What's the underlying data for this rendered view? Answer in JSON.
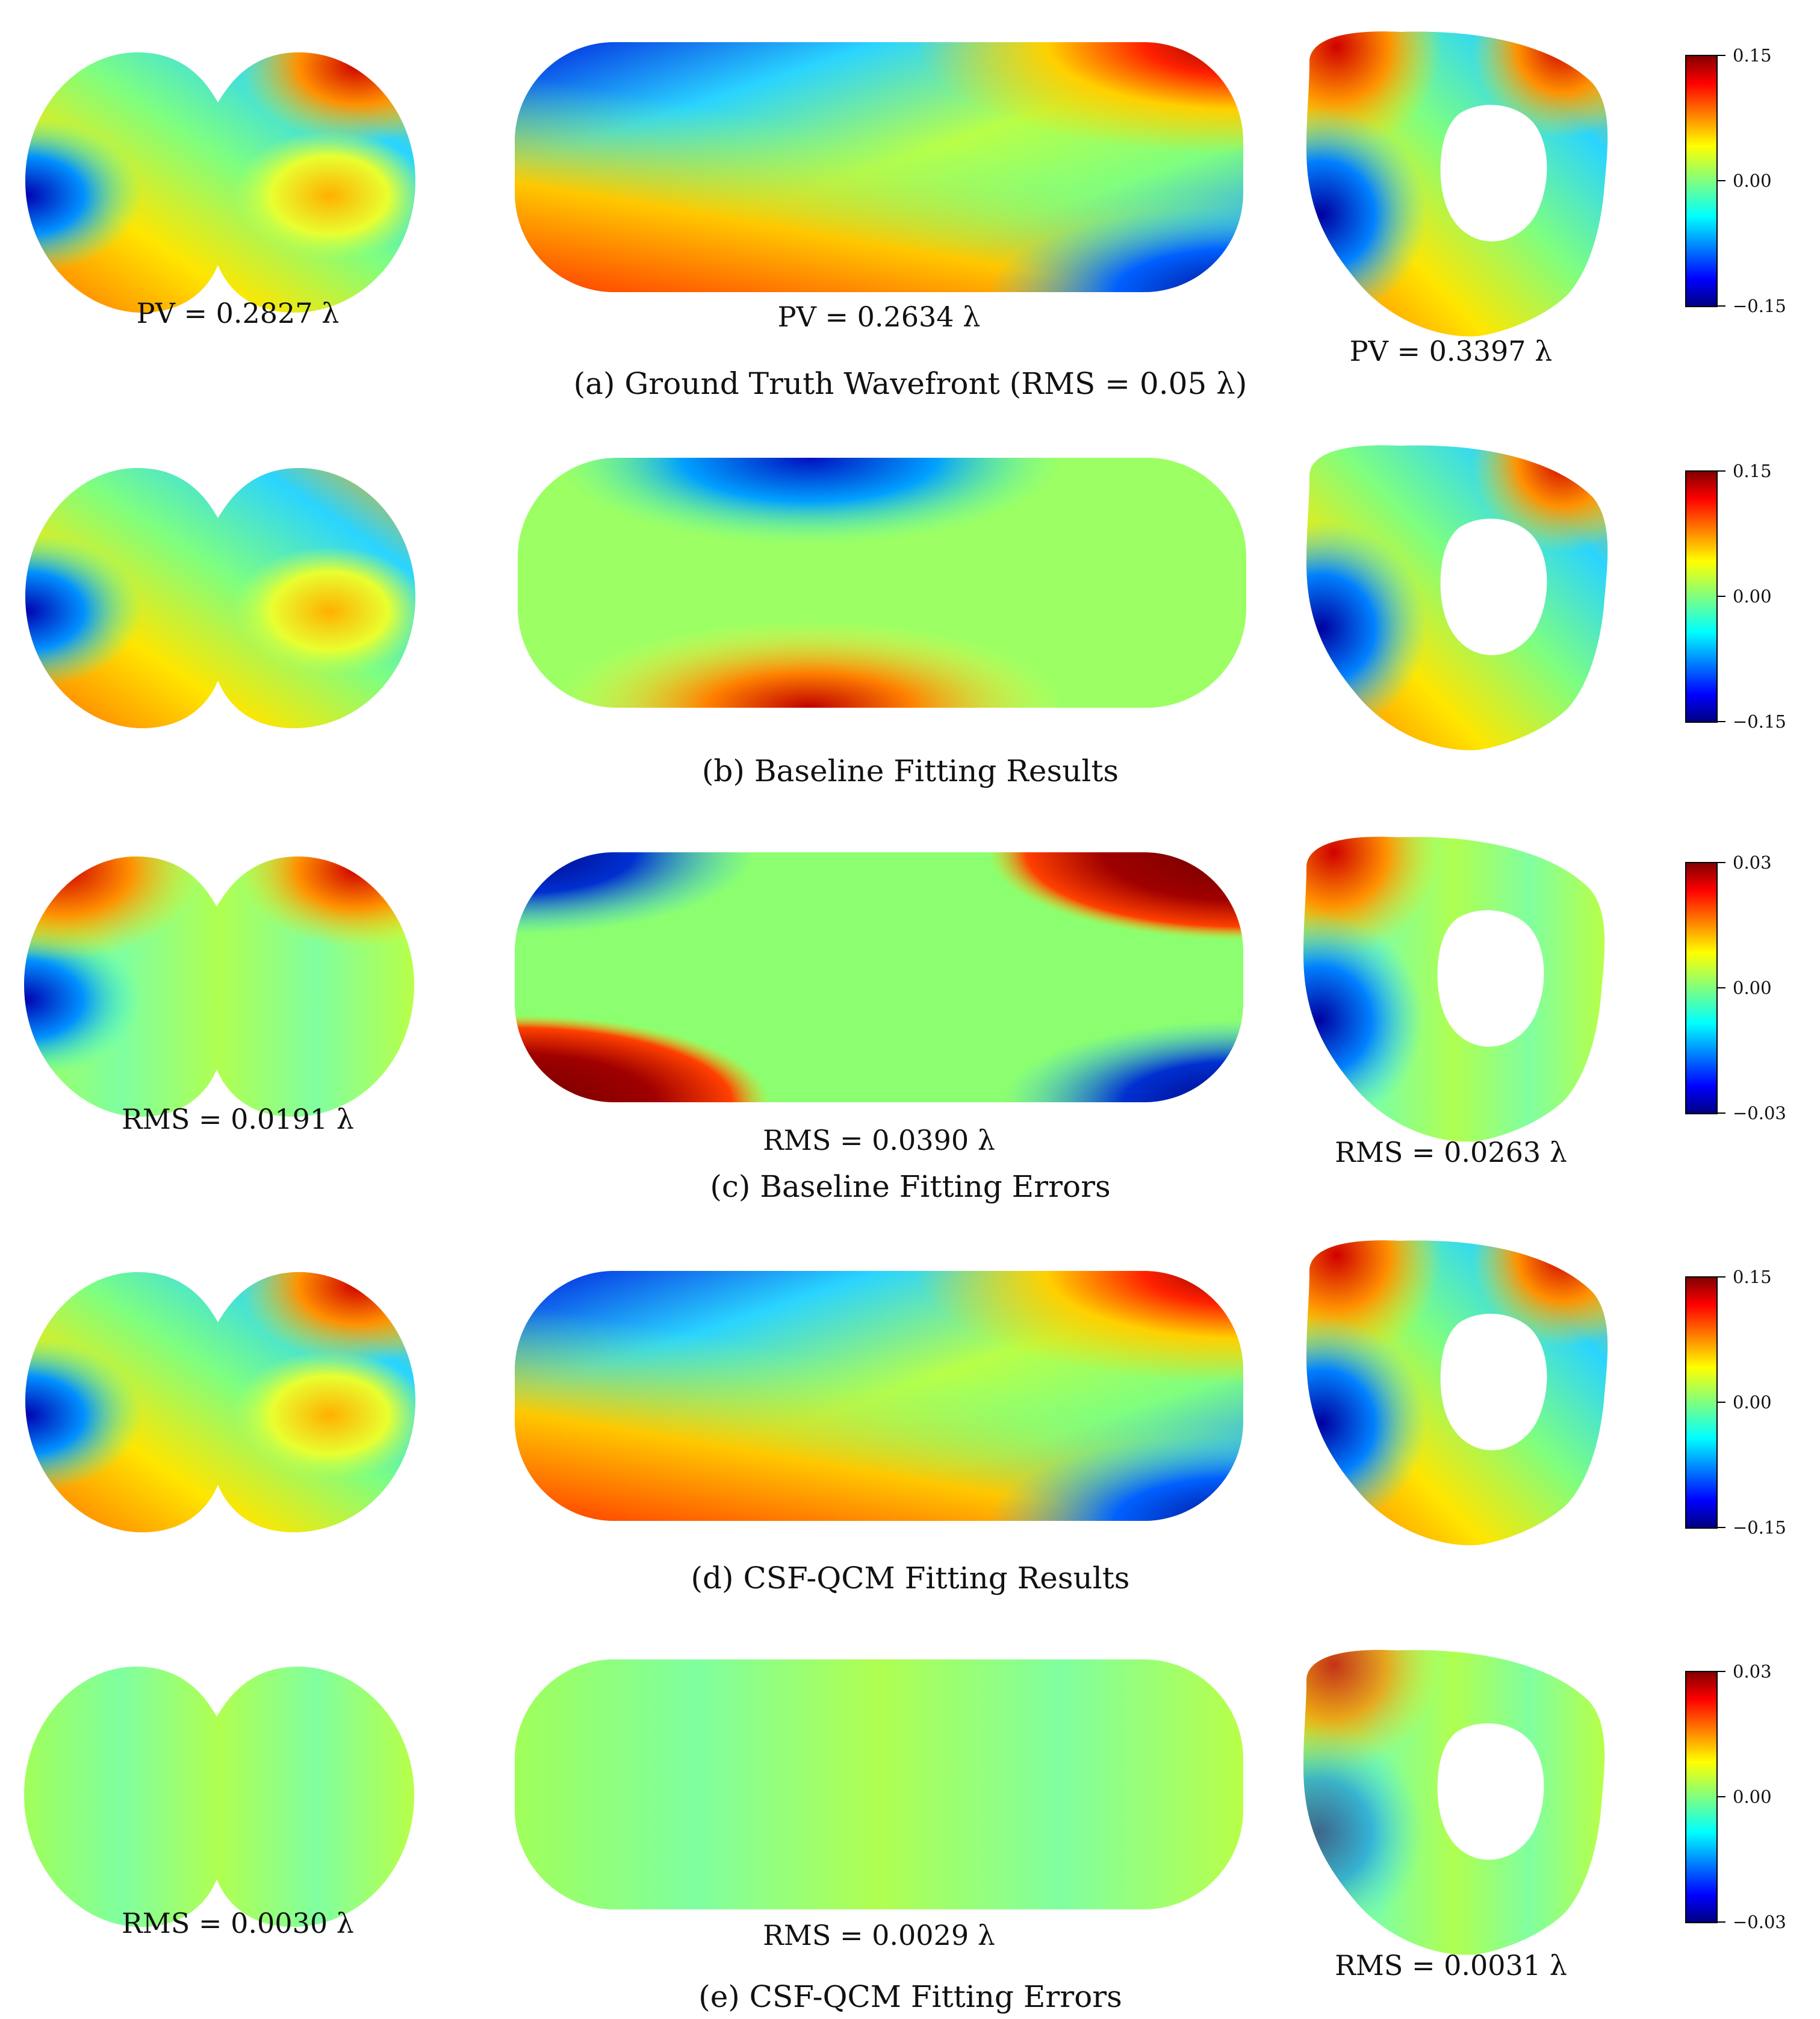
{
  "colors": {
    "jet_dark_blue": "#00007f",
    "jet_blue": "#0000ff",
    "jet_cyan": "#00ffff",
    "jet_green": "#7fff7f",
    "jet_yellow": "#ffff00",
    "jet_orange": "#ff7f00",
    "jet_red": "#ff0000",
    "jet_dark_red": "#7f0000"
  },
  "rows": [
    {
      "caption": "(a) Ground Truth Wavefront (RMS = 0.05 λ)",
      "colorbar": {
        "max": "0.15",
        "mid": "0.00",
        "min": "−0.15"
      },
      "labels": [
        "PV = 0.2827 λ",
        "PV = 0.2634 λ",
        "PV = 0.3397 λ"
      ]
    },
    {
      "caption": "(b) Baseline Fitting Results",
      "colorbar": {
        "max": "0.15",
        "mid": "0.00",
        "min": "−0.15"
      },
      "labels": []
    },
    {
      "caption": "(c) Baseline Fitting Errors",
      "colorbar": {
        "max": "0.03",
        "mid": "0.00",
        "min": "−0.03"
      },
      "labels": [
        "RMS = 0.0191 λ",
        "RMS = 0.0390 λ",
        "RMS = 0.0263 λ"
      ]
    },
    {
      "caption": "(d) CSF-QCM Fitting Results",
      "colorbar": {
        "max": "0.15",
        "mid": "0.00",
        "min": "−0.15"
      },
      "labels": []
    },
    {
      "caption": "(e) CSF-QCM Fitting Errors",
      "colorbar": {
        "max": "0.03",
        "mid": "0.00",
        "min": "−0.03"
      },
      "labels": [
        "RMS = 0.0030 λ",
        "RMS = 0.0029 λ",
        "RMS = 0.0031 λ"
      ]
    }
  ]
}
